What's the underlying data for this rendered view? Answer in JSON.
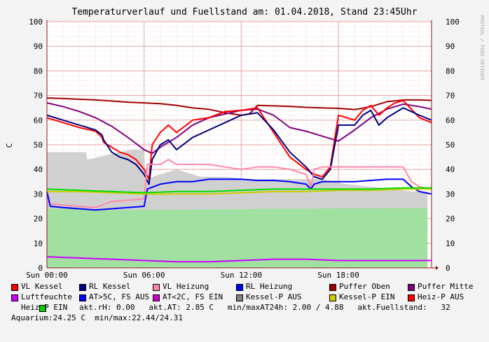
{
  "colors": {
    "background": "#f3f3f3",
    "plot_background": "#ffffff",
    "grid_major": "#e8a0a0",
    "grid_minor": "#f2d0d0",
    "axis": "#8b1a1a"
  },
  "header": {
    "title": "Temperaturverlauf und Fuellstand am: 01.04.2018, Stand 23:45Uhr",
    "ylabel_left": "C",
    "watermark": "RRDTOOL / TOBI OETIKER"
  },
  "legend": {
    "row1": [
      {
        "label": "VL Kessel",
        "color": "#ff0000"
      },
      {
        "label": "RL Kessel",
        "color": "#000080"
      },
      {
        "label": "VL Heizung",
        "color": "#ff88aa"
      },
      {
        "label": "RL Heizung",
        "color": "#0000ff"
      },
      {
        "label": "Puffer Oben",
        "color": "#a00000"
      },
      {
        "label": "Puffer Mitte",
        "color": "#800080"
      }
    ],
    "row2": [
      {
        "label": "Luftfeuchte",
        "color": "#cc00ff"
      },
      {
        "label": "AT>5C, FS AUS",
        "color": "#0000ff"
      },
      {
        "label": "AT<2C, FS EIN",
        "color": "#cc00cc"
      },
      {
        "label": "Kessel-P AUS",
        "color": "#808080"
      },
      {
        "label": "Kessel-P EIN",
        "color": "#cccc00"
      },
      {
        "label": "Heiz-P AUS",
        "color": "#ff0000"
      }
    ],
    "row3": {
      "item": {
        "label": "Heiz-P EIN",
        "color": "#00dd00"
      },
      "stats": "akt.rH: 0.00   akt.AT: 2.85 C   min/maxAT24h: 2.00 / 4.88   akt.Fuellstand:   32"
    },
    "row4": {
      "stats": "Aquarium:24.25 C  min/max:22.44/24.31"
    }
  },
  "chart_data": {
    "type": "line",
    "x_unit": "hours",
    "xlim": [
      0,
      23.75
    ],
    "ylim": [
      0,
      100
    ],
    "x_ticks": [
      {
        "x": 0,
        "label": "Sun 00:00"
      },
      {
        "x": 6,
        "label": "Sun 06:00"
      },
      {
        "x": 12,
        "label": "Sun 12:00"
      },
      {
        "x": 18,
        "label": "Sun 18:00"
      }
    ],
    "y_ticks": [
      0,
      10,
      20,
      30,
      40,
      50,
      60,
      70,
      80,
      90,
      100
    ],
    "grid": true,
    "legend_position": "bottom",
    "areas": [
      {
        "name": "Kessel-P AUS",
        "color": "#d0d0d0",
        "x": [
          0,
          2.4,
          2.5,
          4.5,
          5.2,
          6.0,
          6.1,
          7.0,
          8.0,
          9.5,
          11.0,
          12.5,
          14.0,
          15.5,
          17.0,
          18.5,
          20.0,
          21.5,
          22.5,
          23.5
        ],
        "y": [
          47,
          47,
          44,
          47,
          48,
          48,
          36,
          38,
          40,
          37,
          37,
          36,
          36,
          36,
          36,
          34,
          33,
          32,
          31,
          31
        ]
      },
      {
        "name": "Heiz-P EIN",
        "color": "#a0e0a0",
        "x": [
          0,
          2.0,
          4.0,
          6.0,
          8.0,
          10.0,
          12.0,
          14.0,
          16.0,
          18.0,
          20.0,
          22.0,
          23.5
        ],
        "y": [
          24,
          24,
          23.5,
          23.5,
          23.5,
          23.8,
          23.8,
          24,
          24,
          24.2,
          24.2,
          24.3,
          24.3
        ]
      }
    ],
    "series": [
      {
        "name": "Puffer Oben",
        "color": "#a00000",
        "x": [
          0,
          1,
          2,
          3,
          4,
          5,
          6,
          7,
          8,
          9,
          10,
          11,
          12,
          12.5,
          13,
          14,
          15,
          16,
          17,
          18,
          19,
          20,
          21,
          22,
          23,
          23.75
        ],
        "y": [
          69,
          68.8,
          68.5,
          68.2,
          67.8,
          67.3,
          67,
          66.7,
          66,
          65,
          64.4,
          63,
          62,
          62.5,
          66,
          65.8,
          65.6,
          65.2,
          65,
          64.8,
          64.3,
          65.5,
          67.5,
          68.2,
          68.2,
          68
        ]
      },
      {
        "name": "Puffer Mitte",
        "color": "#800080",
        "x": [
          0,
          1,
          2,
          3,
          4,
          5,
          6,
          6.5,
          7,
          8,
          9,
          10,
          11,
          12,
          13,
          14,
          15,
          16,
          17,
          18,
          19,
          20,
          21,
          22,
          23,
          23.75
        ],
        "y": [
          67,
          65.5,
          63.5,
          61,
          57.5,
          53,
          48,
          46.5,
          49,
          53,
          58,
          61,
          62.5,
          64,
          64.5,
          62,
          57,
          55.5,
          53.5,
          51.5,
          56,
          61,
          64.5,
          66.5,
          65.5,
          64.5
        ]
      },
      {
        "name": "VL Kessel",
        "color": "#ff0000",
        "x": [
          0,
          1,
          2,
          3,
          3.4,
          3.5,
          4,
          4.5,
          5,
          5.5,
          6,
          6.3,
          6.5,
          7,
          7.5,
          8,
          9,
          10,
          11,
          12,
          13,
          14,
          15,
          16,
          16.5,
          17,
          17.5,
          18,
          19,
          19.5,
          20,
          20.5,
          21,
          21.5,
          22,
          23,
          23.75
        ],
        "y": [
          61,
          59,
          57,
          55.5,
          53,
          51,
          49,
          47,
          46,
          44,
          40,
          36,
          50,
          55,
          58,
          55,
          60,
          61,
          63.5,
          64,
          65,
          55,
          45,
          40,
          38,
          37,
          41,
          62,
          60,
          64,
          66,
          62,
          65,
          67,
          68,
          61,
          59
        ]
      },
      {
        "name": "RL Kessel",
        "color": "#000080",
        "x": [
          0,
          1,
          2,
          3,
          3.4,
          3.5,
          4,
          4.5,
          5,
          5.5,
          6,
          6.3,
          6.5,
          7,
          7.5,
          8,
          9,
          10,
          11,
          12,
          13,
          14,
          15,
          16,
          16.5,
          17,
          17.5,
          18,
          19,
          19.5,
          20,
          20.5,
          21,
          21.5,
          22,
          23,
          23.75
        ],
        "y": [
          62,
          60,
          58,
          56,
          54,
          52,
          47,
          45,
          44,
          42,
          38,
          34,
          44,
          50,
          52,
          48,
          53,
          56,
          59,
          62,
          63,
          56,
          47,
          41,
          37,
          36,
          40,
          58,
          58,
          62,
          64,
          58,
          61,
          63,
          65,
          62,
          60
        ]
      },
      {
        "name": "VL Heizung",
        "color": "#ff88aa",
        "x": [
          0,
          0.2,
          1,
          2,
          3,
          4,
          5,
          6,
          6.2,
          7,
          7.5,
          8,
          9,
          10,
          11,
          12,
          13,
          14,
          15,
          16,
          16.3,
          16.5,
          17,
          18,
          19,
          20,
          21,
          22,
          22.5,
          23,
          23.75
        ],
        "y": [
          31,
          26,
          25.5,
          25,
          24.5,
          27,
          27.5,
          28,
          42,
          42,
          44,
          42,
          42,
          42,
          41,
          40,
          41,
          41,
          40,
          38,
          33,
          40,
          41,
          41,
          41,
          41,
          41,
          41,
          35,
          33,
          32
        ]
      },
      {
        "name": "RL Heizung",
        "color": "#0000ff",
        "x": [
          0,
          0.2,
          1,
          2,
          3,
          4,
          5,
          6,
          6.2,
          7,
          8,
          9,
          10,
          11,
          12,
          13,
          14,
          15,
          16,
          16.3,
          16.5,
          17,
          18,
          19,
          20,
          21,
          22,
          22.5,
          23,
          23.75
        ],
        "y": [
          31,
          25,
          24.5,
          24,
          23.5,
          24,
          24.5,
          25,
          32,
          34,
          35,
          35,
          36,
          36,
          36,
          35.5,
          35.5,
          35,
          34,
          32,
          34,
          35,
          35,
          35,
          35.5,
          36,
          36,
          33,
          31,
          30
        ]
      },
      {
        "name": "Kessel-P EIN",
        "color": "#cccc00",
        "x": [
          0,
          2,
          4,
          6,
          8,
          10,
          12,
          14,
          16,
          18,
          20,
          22,
          23.75
        ],
        "y": [
          31,
          31,
          30.5,
          30,
          30,
          30,
          30.5,
          31,
          31,
          31.5,
          31.5,
          32,
          32
        ]
      },
      {
        "name": "Heiz-P EIN",
        "color": "#00dd00",
        "x": [
          0,
          2,
          4,
          6,
          8,
          10,
          12,
          14,
          16,
          18,
          20,
          22,
          23.75
        ],
        "y": [
          32,
          31.5,
          31,
          30.5,
          31,
          31,
          31.5,
          32,
          32,
          32,
          32,
          32.5,
          32.5
        ]
      },
      {
        "name": "Luftfeuchte",
        "color": "#cc00ff",
        "x": [
          0,
          2,
          4,
          6,
          8,
          10,
          12,
          14,
          16,
          18,
          20,
          22,
          23.75
        ],
        "y": [
          4.5,
          4,
          3.5,
          3,
          2.5,
          2.5,
          3,
          3.5,
          3.5,
          3,
          3,
          3,
          3
        ]
      }
    ]
  }
}
